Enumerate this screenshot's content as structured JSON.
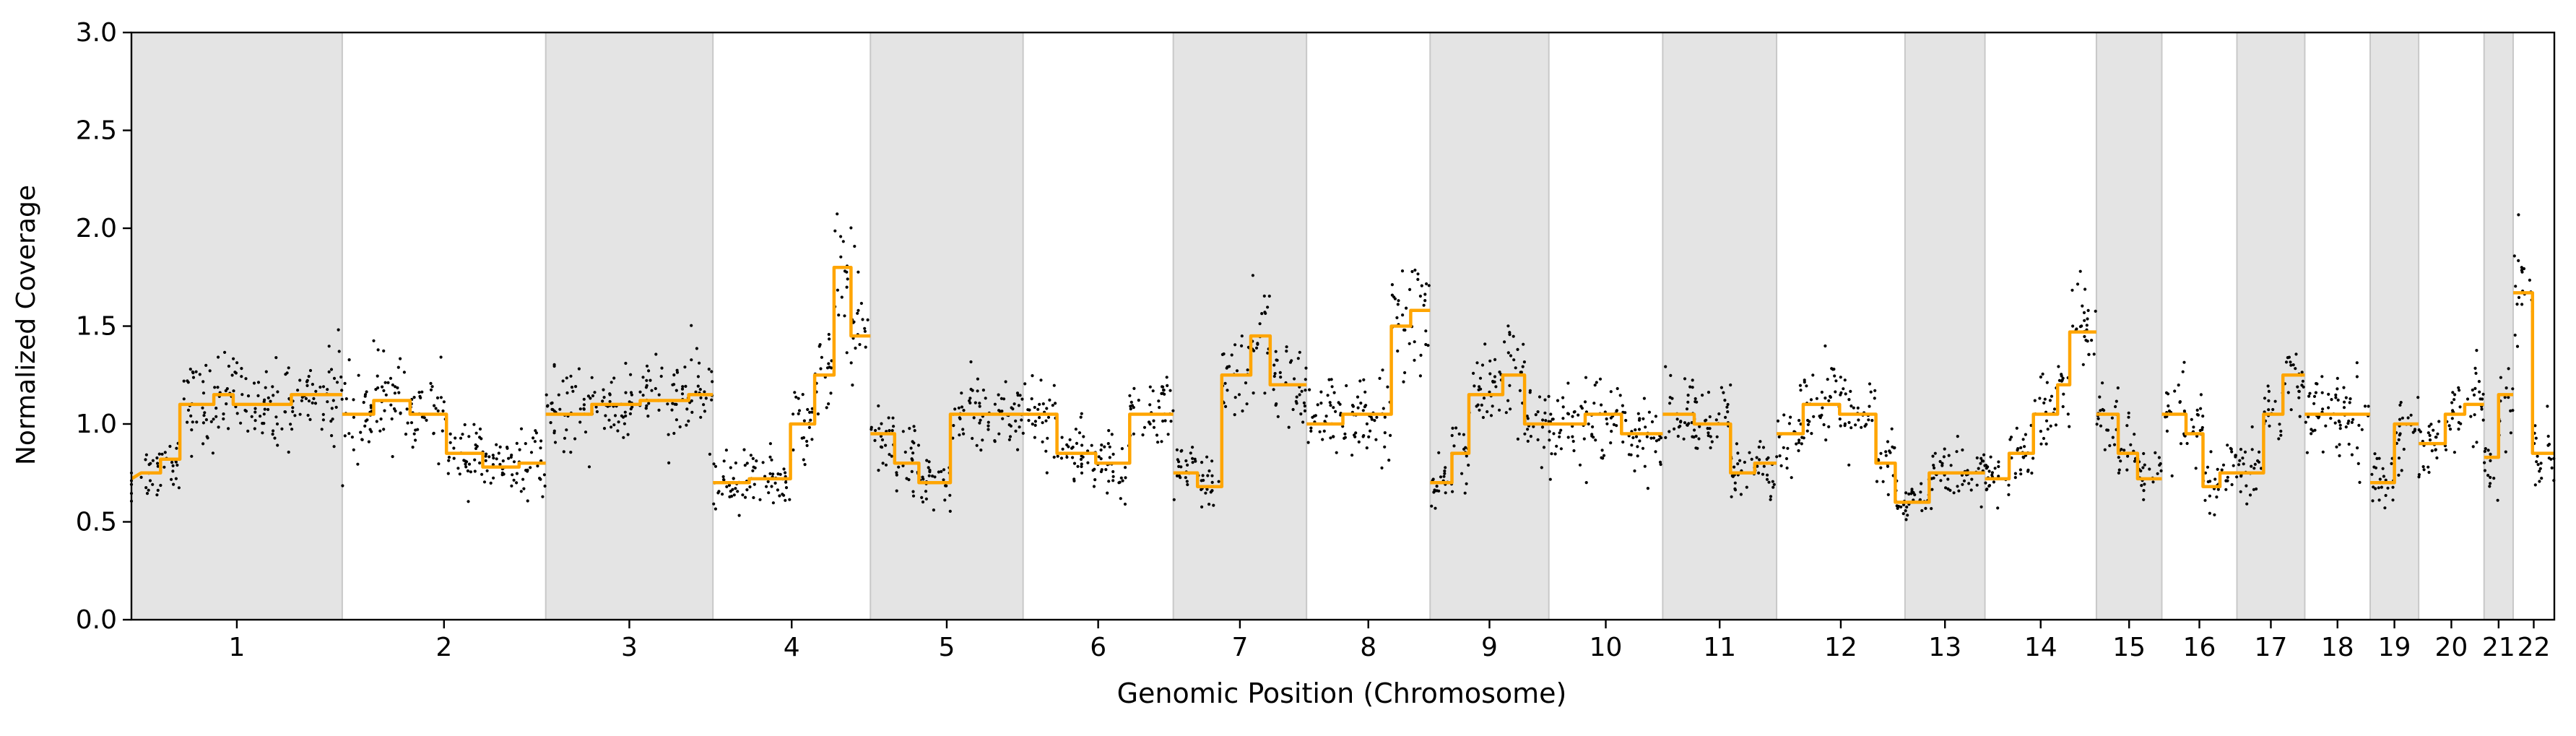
{
  "chart_data": {
    "type": "scatter",
    "title": "",
    "xlabel": "Genomic Position (Chromosome)",
    "ylabel": "Normalized Coverage",
    "ylim": [
      0,
      3
    ],
    "yticks": [
      "0.0",
      "0.5",
      "1.0",
      "1.5",
      "2.0",
      "2.5",
      "3.0"
    ],
    "grid": false,
    "legend": "none",
    "colors": {
      "points": "#000000",
      "segments": "#FFA500",
      "shading": "#E4E4E4",
      "boundary": "#C8C8C8"
    },
    "chromosomes": [
      {
        "label": "1",
        "start": 0.0,
        "end": 0.087,
        "shaded": true,
        "segments": [
          [
            0.0,
            0.0,
            0.72
          ],
          [
            0.004,
            0.012,
            0.75
          ],
          [
            0.012,
            0.02,
            0.82
          ],
          [
            0.02,
            0.034,
            1.1
          ],
          [
            0.034,
            0.042,
            1.15
          ],
          [
            0.042,
            0.055,
            1.1
          ],
          [
            0.055,
            0.066,
            1.1
          ],
          [
            0.066,
            0.087,
            1.15
          ]
        ]
      },
      {
        "label": "2",
        "start": 0.087,
        "end": 0.171,
        "shaded": false,
        "segments": [
          [
            0.087,
            0.1,
            1.05
          ],
          [
            0.1,
            0.115,
            1.12
          ],
          [
            0.115,
            0.13,
            1.05
          ],
          [
            0.13,
            0.145,
            0.85
          ],
          [
            0.145,
            0.16,
            0.78
          ],
          [
            0.16,
            0.171,
            0.8
          ]
        ]
      },
      {
        "label": "3",
        "start": 0.171,
        "end": 0.24,
        "shaded": true,
        "segments": [
          [
            0.171,
            0.19,
            1.05
          ],
          [
            0.19,
            0.21,
            1.1
          ],
          [
            0.21,
            0.23,
            1.12
          ],
          [
            0.23,
            0.24,
            1.15
          ]
        ]
      },
      {
        "label": "4",
        "start": 0.24,
        "end": 0.305,
        "shaded": false,
        "segments": [
          [
            0.24,
            0.255,
            0.7
          ],
          [
            0.255,
            0.272,
            0.72
          ],
          [
            0.272,
            0.282,
            1.0
          ],
          [
            0.282,
            0.29,
            1.25
          ],
          [
            0.29,
            0.297,
            1.8
          ],
          [
            0.297,
            0.305,
            1.45
          ]
        ]
      },
      {
        "label": "5",
        "start": 0.305,
        "end": 0.368,
        "shaded": true,
        "segments": [
          [
            0.305,
            0.315,
            0.95
          ],
          [
            0.315,
            0.325,
            0.8
          ],
          [
            0.325,
            0.338,
            0.7
          ],
          [
            0.338,
            0.352,
            1.05
          ],
          [
            0.352,
            0.368,
            1.05
          ]
        ]
      },
      {
        "label": "6",
        "start": 0.368,
        "end": 0.43,
        "shaded": false,
        "segments": [
          [
            0.368,
            0.382,
            1.05
          ],
          [
            0.382,
            0.398,
            0.85
          ],
          [
            0.398,
            0.412,
            0.8
          ],
          [
            0.412,
            0.43,
            1.05
          ]
        ]
      },
      {
        "label": "7",
        "start": 0.43,
        "end": 0.485,
        "shaded": true,
        "segments": [
          [
            0.43,
            0.44,
            0.75
          ],
          [
            0.44,
            0.45,
            0.68
          ],
          [
            0.45,
            0.462,
            1.25
          ],
          [
            0.462,
            0.47,
            1.45
          ],
          [
            0.47,
            0.485,
            1.2
          ]
        ]
      },
      {
        "label": "8",
        "start": 0.485,
        "end": 0.536,
        "shaded": false,
        "segments": [
          [
            0.485,
            0.5,
            1.0
          ],
          [
            0.5,
            0.52,
            1.05
          ],
          [
            0.52,
            0.528,
            1.5
          ],
          [
            0.528,
            0.536,
            1.58
          ]
        ]
      },
      {
        "label": "9",
        "start": 0.536,
        "end": 0.585,
        "shaded": true,
        "segments": [
          [
            0.536,
            0.545,
            0.7
          ],
          [
            0.545,
            0.552,
            0.85
          ],
          [
            0.552,
            0.566,
            1.15
          ],
          [
            0.566,
            0.575,
            1.25
          ],
          [
            0.575,
            0.585,
            1.0
          ]
        ]
      },
      {
        "label": "10",
        "start": 0.585,
        "end": 0.632,
        "shaded": false,
        "segments": [
          [
            0.585,
            0.6,
            1.0
          ],
          [
            0.6,
            0.615,
            1.05
          ],
          [
            0.615,
            0.632,
            0.95
          ]
        ]
      },
      {
        "label": "11",
        "start": 0.632,
        "end": 0.679,
        "shaded": true,
        "segments": [
          [
            0.632,
            0.645,
            1.05
          ],
          [
            0.645,
            0.66,
            1.0
          ],
          [
            0.66,
            0.67,
            0.75
          ],
          [
            0.67,
            0.679,
            0.8
          ]
        ]
      },
      {
        "label": "12",
        "start": 0.679,
        "end": 0.732,
        "shaded": false,
        "segments": [
          [
            0.679,
            0.69,
            0.95
          ],
          [
            0.69,
            0.705,
            1.1
          ],
          [
            0.705,
            0.72,
            1.05
          ],
          [
            0.72,
            0.728,
            0.8
          ],
          [
            0.728,
            0.732,
            0.6
          ]
        ]
      },
      {
        "label": "13",
        "start": 0.732,
        "end": 0.765,
        "shaded": true,
        "segments": [
          [
            0.732,
            0.742,
            0.6
          ],
          [
            0.742,
            0.765,
            0.75
          ]
        ]
      },
      {
        "label": "14",
        "start": 0.765,
        "end": 0.811,
        "shaded": false,
        "segments": [
          [
            0.765,
            0.775,
            0.72
          ],
          [
            0.775,
            0.785,
            0.85
          ],
          [
            0.785,
            0.795,
            1.05
          ],
          [
            0.795,
            0.8,
            1.2
          ],
          [
            0.8,
            0.811,
            1.47
          ]
        ]
      },
      {
        "label": "15",
        "start": 0.811,
        "end": 0.838,
        "shaded": true,
        "segments": [
          [
            0.811,
            0.82,
            1.05
          ],
          [
            0.82,
            0.828,
            0.85
          ],
          [
            0.828,
            0.838,
            0.72
          ]
        ]
      },
      {
        "label": "16",
        "start": 0.838,
        "end": 0.869,
        "shaded": false,
        "segments": [
          [
            0.838,
            0.848,
            1.05
          ],
          [
            0.848,
            0.855,
            0.95
          ],
          [
            0.855,
            0.862,
            0.68
          ],
          [
            0.862,
            0.869,
            0.75
          ]
        ]
      },
      {
        "label": "17",
        "start": 0.869,
        "end": 0.897,
        "shaded": true,
        "segments": [
          [
            0.869,
            0.88,
            0.75
          ],
          [
            0.88,
            0.888,
            1.05
          ],
          [
            0.888,
            0.897,
            1.25
          ]
        ]
      },
      {
        "label": "18",
        "start": 0.897,
        "end": 0.924,
        "shaded": false,
        "segments": [
          [
            0.897,
            0.91,
            1.05
          ],
          [
            0.91,
            0.924,
            1.05
          ]
        ]
      },
      {
        "label": "19",
        "start": 0.924,
        "end": 0.944,
        "shaded": true,
        "segments": [
          [
            0.924,
            0.934,
            0.7
          ],
          [
            0.934,
            0.944,
            1.0
          ]
        ]
      },
      {
        "label": "20",
        "start": 0.944,
        "end": 0.971,
        "shaded": false,
        "segments": [
          [
            0.944,
            0.955,
            0.9
          ],
          [
            0.955,
            0.963,
            1.05
          ],
          [
            0.963,
            0.971,
            1.1
          ]
        ]
      },
      {
        "label": "21",
        "start": 0.971,
        "end": 0.983,
        "shaded": true,
        "segments": [
          [
            0.971,
            0.977,
            0.83
          ],
          [
            0.977,
            0.983,
            1.15
          ]
        ]
      },
      {
        "label": "22",
        "start": 0.983,
        "end": 1.0,
        "shaded": false,
        "segments": [
          [
            0.983,
            0.991,
            1.67
          ],
          [
            0.991,
            1.0,
            0.85
          ]
        ]
      }
    ]
  }
}
